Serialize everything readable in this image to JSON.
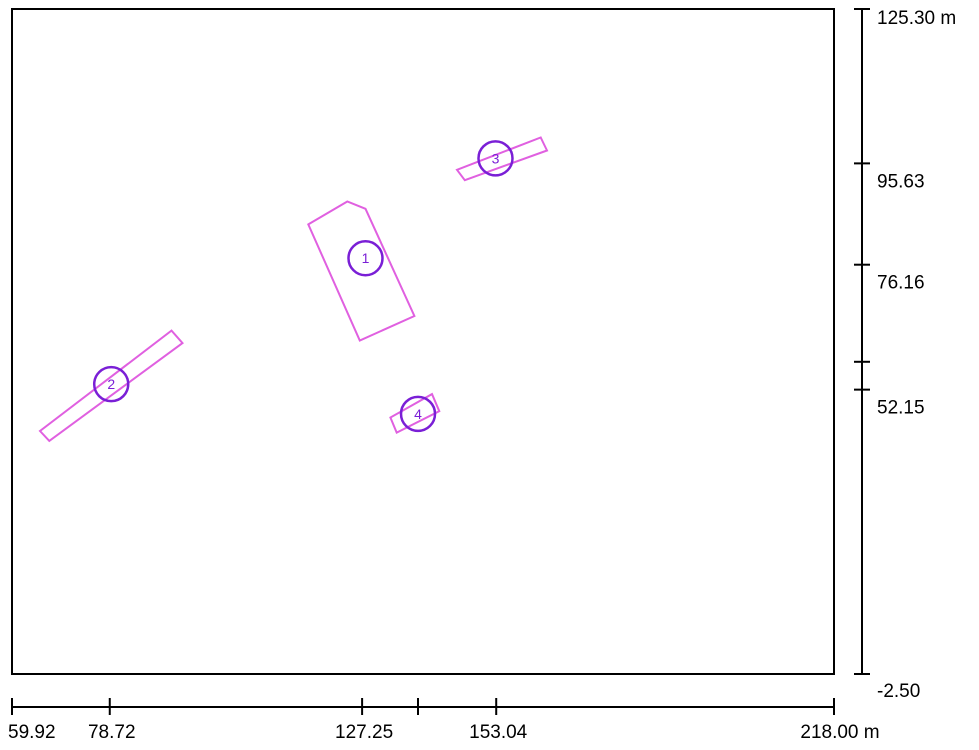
{
  "site_plan": {
    "colors": {
      "frame": "#000000",
      "outline": "#e060e0",
      "marker": "#7a1fd6",
      "marker_text": "#7a1fd6"
    },
    "x_axis": {
      "min": 59.92,
      "max": 218.0,
      "unit": "m",
      "ticks": [
        {
          "value": 59.92,
          "label": "59.92"
        },
        {
          "value": 78.72,
          "label": "78.72"
        },
        {
          "value": 127.25,
          "label": "127.25"
        },
        {
          "value": 138.0,
          "label": ""
        },
        {
          "value": 153.04,
          "label": "153.04"
        },
        {
          "value": 218.0,
          "label": "218.00 m"
        }
      ]
    },
    "y_axis": {
      "min": -2.5,
      "max": 125.3,
      "unit": "m",
      "ticks": [
        {
          "value": 125.3,
          "label": "125.30 m"
        },
        {
          "value": 95.63,
          "label": "95.63"
        },
        {
          "value": 76.16,
          "label": "76.16"
        },
        {
          "value": 57.5,
          "label": ""
        },
        {
          "value": 52.15,
          "label": "52.15"
        },
        {
          "value": -2.5,
          "label": "-2.50"
        }
      ]
    },
    "objects": [
      {
        "id": "1",
        "label": "1",
        "center": [
          127.9,
          77.4
        ],
        "outline": [
          [
            116.9,
            83.9
          ],
          [
            124.4,
            88.3
          ],
          [
            127.9,
            86.9
          ],
          [
            137.3,
            66.3
          ],
          [
            126.8,
            61.6
          ],
          [
            116.9,
            83.9
          ]
        ]
      },
      {
        "id": "2",
        "label": "2",
        "center": [
          79.0,
          53.2
        ],
        "outline": [
          [
            65.3,
            44.2
          ],
          [
            67.1,
            42.3
          ],
          [
            92.7,
            61.1
          ],
          [
            90.6,
            63.5
          ],
          [
            65.3,
            44.2
          ]
        ]
      },
      {
        "id": "3",
        "label": "3",
        "center": [
          152.9,
          96.6
        ],
        "outline": [
          [
            145.5,
            94.4
          ],
          [
            147.0,
            92.4
          ],
          [
            162.8,
            98.1
          ],
          [
            161.6,
            100.6
          ],
          [
            145.5,
            94.4
          ]
        ]
      },
      {
        "id": "4",
        "label": "4",
        "center": [
          138.0,
          47.5
        ],
        "outline": [
          [
            132.7,
            46.8
          ],
          [
            133.9,
            43.9
          ],
          [
            142.1,
            48.0
          ],
          [
            140.7,
            51.3
          ],
          [
            132.7,
            46.8
          ]
        ]
      }
    ]
  }
}
